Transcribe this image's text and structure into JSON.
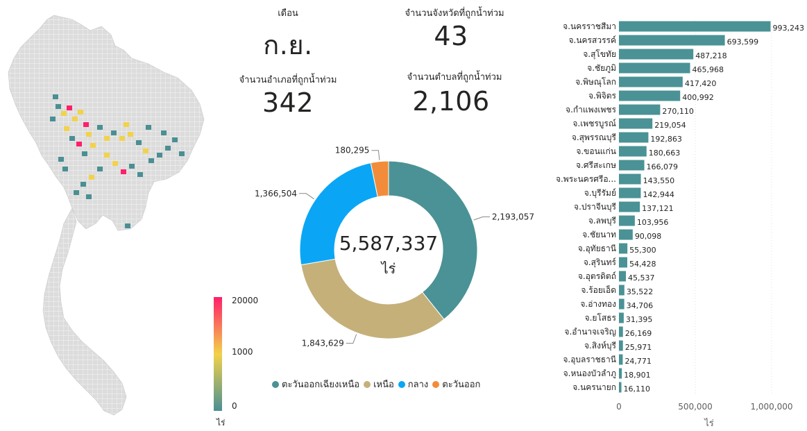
{
  "kpis": {
    "month_label": "เดือน",
    "month_value": "ก.ย.",
    "provinces_label": "จำนวนจังหวัดที่ถูกน้ำท่วม",
    "provinces_value": "43",
    "districts_label": "จำนวนอำเภอที่ถูกน้ำท่วม",
    "districts_value": "342",
    "subdistricts_label": "จำนวนตำบลที่ถูกน้ำท่วม",
    "subdistricts_value": "2,106"
  },
  "map": {
    "scale_max": "20000",
    "scale_mid": "1000",
    "scale_min": "0",
    "unit": "ไร่",
    "colors": {
      "low": "#4a8f93",
      "mid": "#f2d24a",
      "high": "#ff1f6b",
      "base": "#d9d9d9"
    }
  },
  "chart_data": [
    {
      "type": "pie",
      "donut": true,
      "center_value": "5,587,337",
      "center_unit": "ไร่",
      "legend_position": "bottom",
      "slices": [
        {
          "name": "ตะวันออกเฉียงเหนือ",
          "value": 2193057,
          "label": "2,193,057",
          "color": "#4a9295"
        },
        {
          "name": "เหนือ",
          "value": 1843629,
          "label": "1,843,629",
          "color": "#c5b07a"
        },
        {
          "name": "กลาง",
          "value": 1366504,
          "label": "1,366,504",
          "color": "#0aa6f5"
        },
        {
          "name": "ตะวันออก",
          "value": 180295,
          "label": "180,295",
          "color": "#f28c3a"
        }
      ]
    },
    {
      "type": "bar",
      "orientation": "horizontal",
      "xlabel": "ไร่",
      "xlim": [
        0,
        1000000
      ],
      "x_ticks": [
        "0",
        "500,000",
        "1,000,000"
      ],
      "color": "#4a9295",
      "categories": [
        "จ.นครราชสีมา",
        "จ.นครสวรรค์",
        "จ.สุโขทัย",
        "จ.ชัยภูมิ",
        "จ.พิษณุโลก",
        "จ.พิจิตร",
        "จ.กำแพงเพชร",
        "จ.เพชรบูรณ์",
        "จ.สุพรรณบุรี",
        "จ.ขอนแก่น",
        "จ.ศรีสะเกษ",
        "จ.พระนครศรีอ...",
        "จ.บุรีรัมย์",
        "จ.ปราจีนบุรี",
        "จ.ลพบุรี",
        "จ.ชัยนาท",
        "จ.อุทัยธานี",
        "จ.สุรินทร์",
        "จ.อุตรดิตถ์",
        "จ.ร้อยเอ็ด",
        "จ.อ่างทอง",
        "จ.ยโสธร",
        "จ.อำนาจเจริญ",
        "จ.สิงห์บุรี",
        "จ.อุบลราชธานี",
        "จ.หนองบัวลำภู",
        "จ.นครนายก"
      ],
      "values": [
        993243,
        693599,
        487218,
        465968,
        417420,
        400992,
        270110,
        219054,
        192863,
        180663,
        166079,
        143550,
        142944,
        137121,
        103956,
        90098,
        55300,
        54428,
        45537,
        35522,
        34706,
        31395,
        26169,
        25971,
        24771,
        18901,
        16110
      ],
      "labels": [
        "993,243",
        "693,599",
        "487,218",
        "465,968",
        "417,420",
        "400,992",
        "270,110",
        "219,054",
        "192,863",
        "180,663",
        "166,079",
        "143,550",
        "142,944",
        "137,121",
        "103,956",
        "90,098",
        "55,300",
        "54,428",
        "45,537",
        "35,522",
        "34,706",
        "31,395",
        "26,169",
        "25,971",
        "24,771",
        "18,901",
        "16,110"
      ]
    }
  ]
}
